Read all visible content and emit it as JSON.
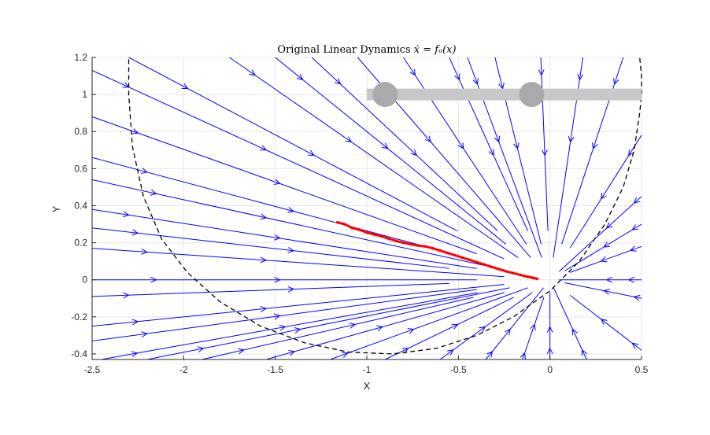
{
  "chart_data": {
    "type": "line",
    "title": "Original Linear Dynamics ẋ = fₒ(x)",
    "xlabel": "X",
    "ylabel": "Y",
    "xlim": [
      -2.5,
      0.5
    ],
    "ylim": [
      -0.43,
      1.2
    ],
    "xticks": [
      -2.5,
      -2,
      -1.5,
      -1,
      -0.5,
      0,
      0.5
    ],
    "xtick_labels": [
      "-2.5",
      "-2",
      "-1.5",
      "-1",
      "-0.5",
      "0",
      "0.5"
    ],
    "yticks": [
      -0.4,
      -0.2,
      0,
      0.2,
      0.4,
      0.6,
      0.8,
      1,
      1.2
    ],
    "ytick_labels": [
      "-0.4",
      "-0.2",
      "0",
      "0.2",
      "0.4",
      "0.6",
      "0.8",
      "1",
      "1.2"
    ],
    "grid": true,
    "attractor": [
      0,
      0
    ],
    "colors": {
      "streamlines": "#0000ff",
      "trajectory": "#ff0000",
      "boundary": "#000000",
      "slider": "#c8c8c8",
      "slider_knob": "#aaaaaa",
      "grid": "#e6e6e6"
    },
    "streamline_starts": [
      [
        -2.5,
        1.13
      ],
      [
        -2.5,
        0.88
      ],
      [
        -2.5,
        0.66
      ],
      [
        -2.5,
        0.54
      ],
      [
        -2.5,
        0.38
      ],
      [
        -2.5,
        0.28
      ],
      [
        -2.5,
        0.17
      ],
      [
        -2.5,
        0.0
      ],
      [
        -2.5,
        -0.09
      ],
      [
        -2.5,
        -0.25
      ],
      [
        -2.5,
        -0.33
      ],
      [
        -2.3,
        1.2
      ],
      [
        -1.75,
        1.2
      ],
      [
        -1.5,
        1.2
      ],
      [
        -1.3,
        1.2
      ],
      [
        -1.05,
        1.2
      ],
      [
        -0.8,
        1.2
      ],
      [
        -0.55,
        1.2
      ],
      [
        -0.45,
        1.2
      ],
      [
        -0.3,
        1.2
      ],
      [
        -0.05,
        1.2
      ],
      [
        0.18,
        1.2
      ],
      [
        0.4,
        1.2
      ],
      [
        0.5,
        0.78
      ],
      [
        0.5,
        0.45
      ],
      [
        0.5,
        0.3
      ],
      [
        0.5,
        0.18
      ],
      [
        0.5,
        0.0
      ],
      [
        0.5,
        -0.1
      ],
      [
        0.5,
        -0.38
      ],
      [
        0.2,
        -0.43
      ],
      [
        0.0,
        -0.43
      ],
      [
        -0.15,
        -0.43
      ],
      [
        -0.35,
        -0.43
      ],
      [
        -0.6,
        -0.43
      ],
      [
        -0.9,
        -0.43
      ],
      [
        -1.2,
        -0.43
      ],
      [
        -1.55,
        -0.43
      ],
      [
        -1.9,
        -0.43
      ],
      [
        -2.2,
        -0.43
      ],
      [
        -2.45,
        -0.43
      ]
    ],
    "series": [
      {
        "type": "scatter",
        "x": [
          -1.16,
          -1.12,
          -1.08,
          -1.04,
          -1.0,
          -0.96,
          -0.92,
          -0.88,
          -0.84,
          -0.8,
          -0.76,
          -0.72,
          -0.68,
          -0.64,
          -0.6,
          -0.56,
          -0.52,
          -0.48,
          -0.44,
          -0.4,
          -0.36,
          -0.32,
          -0.28,
          -0.24,
          -0.2,
          -0.16,
          -0.12,
          -0.09,
          -0.07
        ],
        "y": [
          0.31,
          0.3,
          0.28,
          0.27,
          0.255,
          0.245,
          0.235,
          0.222,
          0.21,
          0.2,
          0.192,
          0.185,
          0.18,
          0.17,
          0.158,
          0.145,
          0.133,
          0.12,
          0.108,
          0.095,
          0.083,
          0.07,
          0.058,
          0.046,
          0.036,
          0.026,
          0.016,
          0.01,
          0.006
        ]
      },
      {
        "type": "line",
        "style": "dashed",
        "x": [
          -2.3,
          -2.3,
          -2.28,
          -2.22,
          -2.12,
          -1.98,
          -1.8,
          -1.58,
          -1.34,
          -1.1,
          -0.86,
          -0.62,
          -0.4,
          -0.2,
          0.0,
          0.16,
          0.3,
          0.4,
          0.46,
          0.49,
          0.5,
          0.5,
          0.49
        ],
        "y": [
          1.19,
          1.0,
          0.72,
          0.45,
          0.22,
          0.04,
          -0.12,
          -0.25,
          -0.34,
          -0.39,
          -0.4,
          -0.37,
          -0.3,
          -0.2,
          -0.06,
          0.1,
          0.3,
          0.5,
          0.7,
          0.9,
          1.0,
          1.1,
          1.2
        ]
      }
    ],
    "slider": {
      "range": [
        -1.0,
        0.5
      ],
      "y": 1.0,
      "knobs": [
        -0.9,
        -0.1
      ]
    }
  }
}
